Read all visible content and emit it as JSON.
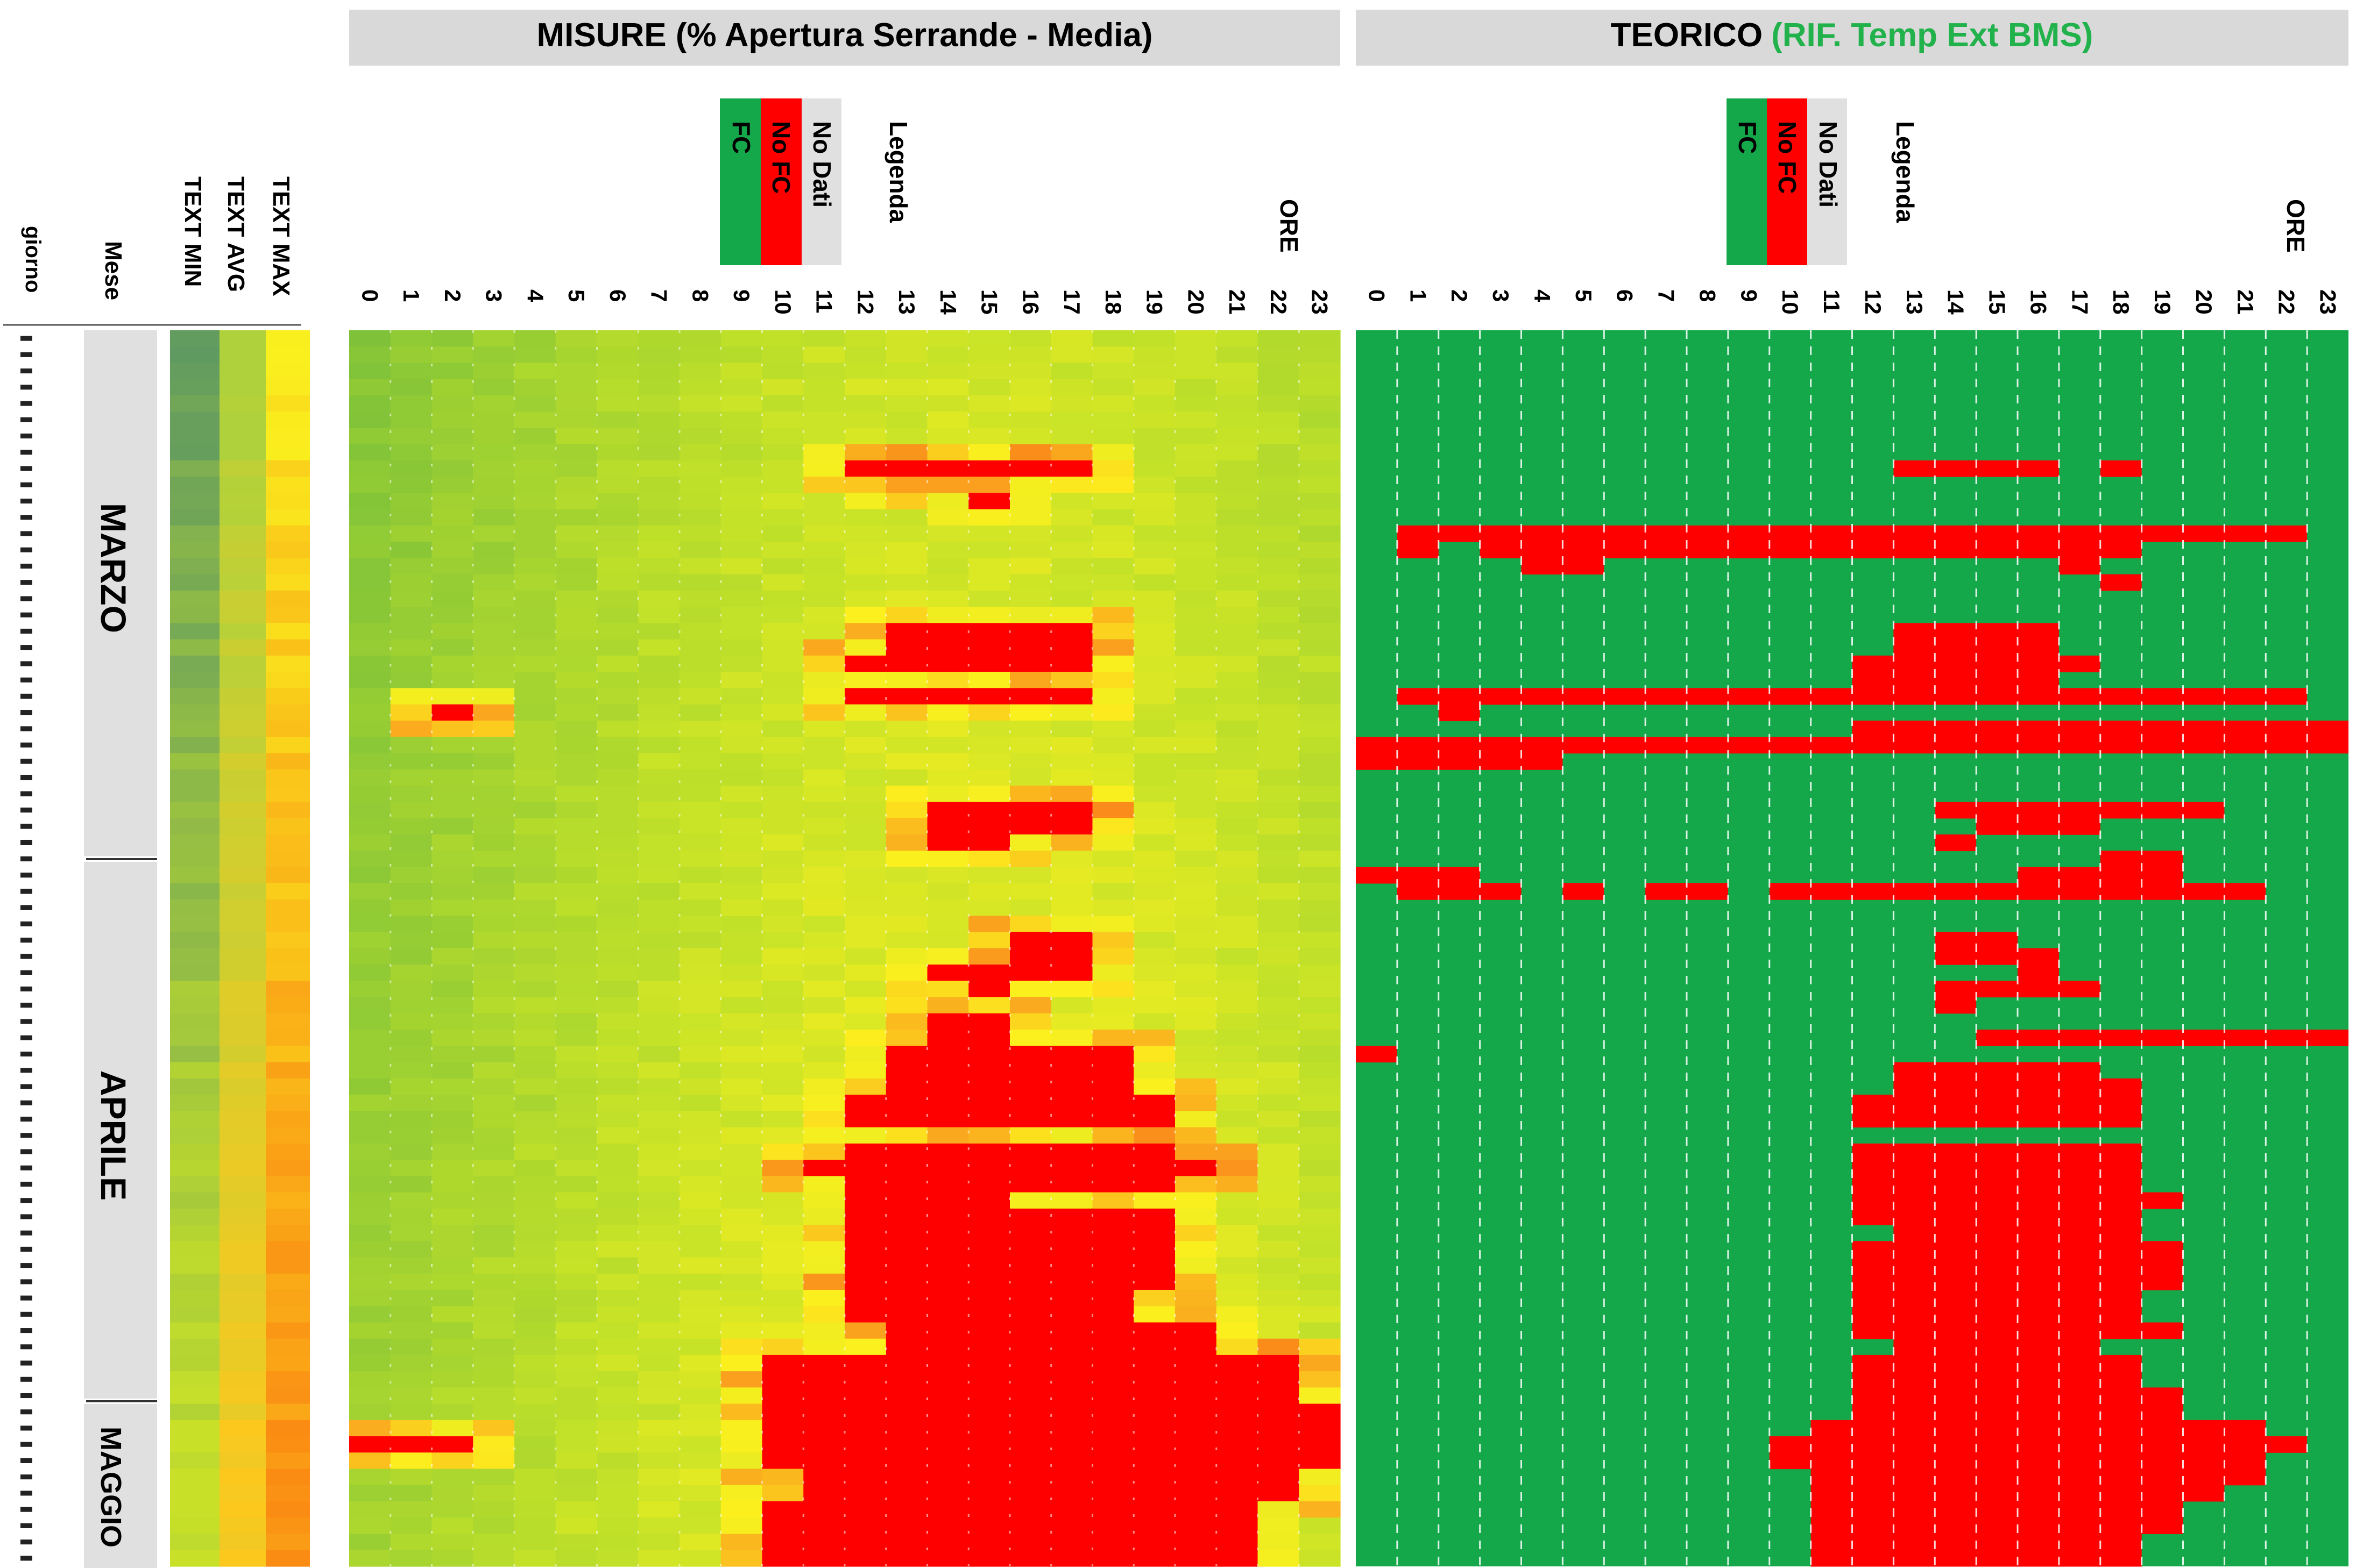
{
  "chart_data": [
    {
      "type": "heatmap",
      "title": "MISURE (% Apertura Serrande - Media)",
      "xlabel": "ORE",
      "x": [
        0,
        1,
        2,
        3,
        4,
        5,
        6,
        7,
        8,
        9,
        10,
        11,
        12,
        13,
        14,
        15,
        16,
        17,
        18,
        19,
        20,
        21,
        22,
        23
      ],
      "rows": 76,
      "row_axis_label": "giorno",
      "color_scale": "green (closed) → yellow → orange → red (fully open)",
      "value_units": "fraction of damper opening (0–1)",
      "legend": [
        {
          "label": "FC",
          "color": "#14a84b"
        },
        {
          "label": "No FC",
          "color": "#ff0000"
        },
        {
          "label": "No Dati",
          "color": "#e0e0e0"
        }
      ],
      "legend_title": "Legenda",
      "open_bands": [
        {
          "rows": [
            8,
            8
          ],
          "hours": [
            12,
            17
          ],
          "value": 1.0
        },
        {
          "rows": [
            9,
            9
          ],
          "hours": [
            13,
            15
          ],
          "value": 0.85
        },
        {
          "rows": [
            10,
            10
          ],
          "hours": [
            15,
            15
          ],
          "value": 1.0
        },
        {
          "rows": [
            18,
            20
          ],
          "hours": [
            13,
            17
          ],
          "value": 1.0
        },
        {
          "rows": [
            20,
            20
          ],
          "hours": [
            12,
            12
          ],
          "value": 1.0
        },
        {
          "rows": [
            22,
            22
          ],
          "hours": [
            12,
            17
          ],
          "value": 1.0
        },
        {
          "rows": [
            23,
            23
          ],
          "hours": [
            2,
            2
          ],
          "value": 1.0
        },
        {
          "rows": [
            29,
            30
          ],
          "hours": [
            14,
            17
          ],
          "value": 1.0
        },
        {
          "rows": [
            31,
            31
          ],
          "hours": [
            14,
            15
          ],
          "value": 1.0
        },
        {
          "rows": [
            37,
            38
          ],
          "hours": [
            16,
            17
          ],
          "value": 1.0
        },
        {
          "rows": [
            39,
            39
          ],
          "hours": [
            14,
            17
          ],
          "value": 1.0
        },
        {
          "rows": [
            40,
            40
          ],
          "hours": [
            15,
            15
          ],
          "value": 1.0
        },
        {
          "rows": [
            42,
            43
          ],
          "hours": [
            14,
            15
          ],
          "value": 1.0
        },
        {
          "rows": [
            44,
            46
          ],
          "hours": [
            13,
            18
          ],
          "value": 1.0
        },
        {
          "rows": [
            47,
            48
          ],
          "hours": [
            12,
            19
          ],
          "value": 1.0
        },
        {
          "rows": [
            50,
            52
          ],
          "hours": [
            12,
            19
          ],
          "value": 1.0
        },
        {
          "rows": [
            51,
            51
          ],
          "hours": [
            11,
            20
          ],
          "value": 1.0
        },
        {
          "rows": [
            52,
            53
          ],
          "hours": [
            12,
            15
          ],
          "value": 1.0
        },
        {
          "rows": [
            54,
            58
          ],
          "hours": [
            12,
            19
          ],
          "value": 1.0
        },
        {
          "rows": [
            59,
            60
          ],
          "hours": [
            12,
            18
          ],
          "value": 1.0
        },
        {
          "rows": [
            61,
            62
          ],
          "hours": [
            13,
            20
          ],
          "value": 1.0
        },
        {
          "rows": [
            63,
            65
          ],
          "hours": [
            10,
            22
          ],
          "value": 1.0
        },
        {
          "rows": [
            66,
            67
          ],
          "hours": [
            10,
            23
          ],
          "value": 1.0
        },
        {
          "rows": [
            68,
            68
          ],
          "hours": [
            0,
            2
          ],
          "value": 1.0
        },
        {
          "rows": [
            68,
            69
          ],
          "hours": [
            10,
            23
          ],
          "value": 1.0
        },
        {
          "rows": [
            70,
            71
          ],
          "hours": [
            11,
            22
          ],
          "value": 1.0
        },
        {
          "rows": [
            72,
            75
          ],
          "hours": [
            10,
            21
          ],
          "value": 1.0
        }
      ]
    },
    {
      "type": "heatmap",
      "title": "TEORICO",
      "title_suffix": "(RIF. Temp Ext BMS)",
      "xlabel": "ORE",
      "x": [
        0,
        1,
        2,
        3,
        4,
        5,
        6,
        7,
        8,
        9,
        10,
        11,
        12,
        13,
        14,
        15,
        16,
        17,
        18,
        19,
        20,
        21,
        22,
        23
      ],
      "rows": 76,
      "legend": [
        {
          "label": "FC",
          "color": "#14a84b"
        },
        {
          "label": "No FC",
          "color": "#ff0000"
        },
        {
          "label": "No Dati",
          "color": "#e0e0e0"
        }
      ],
      "legend_title": "Legenda",
      "nofc_bands": [
        {
          "rows": [
            8,
            8
          ],
          "hours": [
            13,
            16
          ]
        },
        {
          "rows": [
            8,
            8
          ],
          "hours": [
            18,
            18
          ]
        },
        {
          "rows": [
            12,
            12
          ],
          "hours": [
            1,
            22
          ]
        },
        {
          "rows": [
            13,
            13
          ],
          "hours": [
            1,
            1
          ]
        },
        {
          "rows": [
            13,
            13
          ],
          "hours": [
            3,
            18
          ]
        },
        {
          "rows": [
            14,
            14
          ],
          "hours": [
            4,
            5
          ]
        },
        {
          "rows": [
            14,
            14
          ],
          "hours": [
            17,
            17
          ]
        },
        {
          "rows": [
            15,
            15
          ],
          "hours": [
            18,
            18
          ]
        },
        {
          "rows": [
            18,
            19
          ],
          "hours": [
            13,
            16
          ]
        },
        {
          "rows": [
            20,
            20
          ],
          "hours": [
            12,
            17
          ]
        },
        {
          "rows": [
            21,
            21
          ],
          "hours": [
            12,
            16
          ]
        },
        {
          "rows": [
            22,
            22
          ],
          "hours": [
            1,
            22
          ]
        },
        {
          "rows": [
            23,
            23
          ],
          "hours": [
            2,
            2
          ]
        },
        {
          "rows": [
            24,
            24
          ],
          "hours": [
            12,
            23
          ]
        },
        {
          "rows": [
            25,
            25
          ],
          "hours": [
            0,
            23
          ]
        },
        {
          "rows": [
            26,
            26
          ],
          "hours": [
            0,
            4
          ]
        },
        {
          "rows": [
            29,
            29
          ],
          "hours": [
            14,
            20
          ]
        },
        {
          "rows": [
            30,
            30
          ],
          "hours": [
            15,
            17
          ]
        },
        {
          "rows": [
            31,
            31
          ],
          "hours": [
            14,
            14
          ]
        },
        {
          "rows": [
            32,
            32
          ],
          "hours": [
            18,
            19
          ]
        },
        {
          "rows": [
            33,
            33
          ],
          "hours": [
            0,
            2
          ]
        },
        {
          "rows": [
            33,
            33
          ],
          "hours": [
            16,
            19
          ]
        },
        {
          "rows": [
            34,
            34
          ],
          "hours": [
            1,
            3
          ]
        },
        {
          "rows": [
            34,
            34
          ],
          "hours": [
            5,
            5
          ]
        },
        {
          "rows": [
            34,
            34
          ],
          "hours": [
            7,
            8
          ]
        },
        {
          "rows": [
            34,
            34
          ],
          "hours": [
            10,
            21
          ]
        },
        {
          "rows": [
            37,
            38
          ],
          "hours": [
            14,
            15
          ]
        },
        {
          "rows": [
            38,
            38
          ],
          "hours": [
            16,
            16
          ]
        },
        {
          "rows": [
            39,
            39
          ],
          "hours": [
            16,
            16
          ]
        },
        {
          "rows": [
            40,
            40
          ],
          "hours": [
            14,
            17
          ]
        },
        {
          "rows": [
            41,
            41
          ],
          "hours": [
            14,
            14
          ]
        },
        {
          "rows": [
            43,
            43
          ],
          "hours": [
            15,
            23
          ]
        },
        {
          "rows": [
            44,
            44
          ],
          "hours": [
            0,
            0
          ]
        },
        {
          "rows": [
            45,
            45
          ],
          "hours": [
            13,
            17
          ]
        },
        {
          "rows": [
            46,
            46
          ],
          "hours": [
            13,
            18
          ]
        },
        {
          "rows": [
            47,
            48
          ],
          "hours": [
            12,
            18
          ]
        },
        {
          "rows": [
            50,
            52
          ],
          "hours": [
            12,
            18
          ]
        },
        {
          "rows": [
            53,
            53
          ],
          "hours": [
            12,
            19
          ]
        },
        {
          "rows": [
            54,
            54
          ],
          "hours": [
            12,
            14
          ]
        },
        {
          "rows": [
            54,
            54
          ],
          "hours": [
            15,
            18
          ]
        },
        {
          "rows": [
            55,
            55
          ],
          "hours": [
            13,
            18
          ]
        },
        {
          "rows": [
            56,
            58
          ],
          "hours": [
            12,
            19
          ]
        },
        {
          "rows": [
            59,
            60
          ],
          "hours": [
            12,
            18
          ]
        },
        {
          "rows": [
            61,
            61
          ],
          "hours": [
            12,
            19
          ]
        },
        {
          "rows": [
            62,
            62
          ],
          "hours": [
            13,
            17
          ]
        },
        {
          "rows": [
            63,
            64
          ],
          "hours": [
            12,
            18
          ]
        },
        {
          "rows": [
            65,
            66
          ],
          "hours": [
            12,
            19
          ]
        },
        {
          "rows": [
            67,
            67
          ],
          "hours": [
            11,
            21
          ]
        },
        {
          "rows": [
            68,
            68
          ],
          "hours": [
            10,
            22
          ]
        },
        {
          "rows": [
            69,
            69
          ],
          "hours": [
            10,
            21
          ]
        },
        {
          "rows": [
            70,
            70
          ],
          "hours": [
            11,
            21
          ]
        },
        {
          "rows": [
            71,
            71
          ],
          "hours": [
            11,
            20
          ]
        },
        {
          "rows": [
            72,
            73
          ],
          "hours": [
            11,
            19
          ]
        },
        {
          "rows": [
            74,
            75
          ],
          "hours": [
            11,
            18
          ]
        }
      ]
    }
  ],
  "side_columns": {
    "labels": [
      "TEXT MIN",
      "TEXT AVG",
      "TEXT MAX"
    ],
    "row_axis_label": "giorno",
    "month_axis_label": "Mese",
    "months": [
      {
        "name": "MARZO",
        "rows": [
          0,
          32
        ]
      },
      {
        "name": "APRILE",
        "rows": [
          33,
          63
        ]
      },
      {
        "name": "MAGGIO",
        "rows": [
          64,
          75
        ]
      }
    ]
  },
  "colors": {
    "fc": "#14a84b",
    "nofc": "#ff0000",
    "nodata": "#e0e0e0",
    "header_bg": "#d9d9d9",
    "teorico_suffix": "#22b24c",
    "month_bg": "#e0e0e0"
  }
}
